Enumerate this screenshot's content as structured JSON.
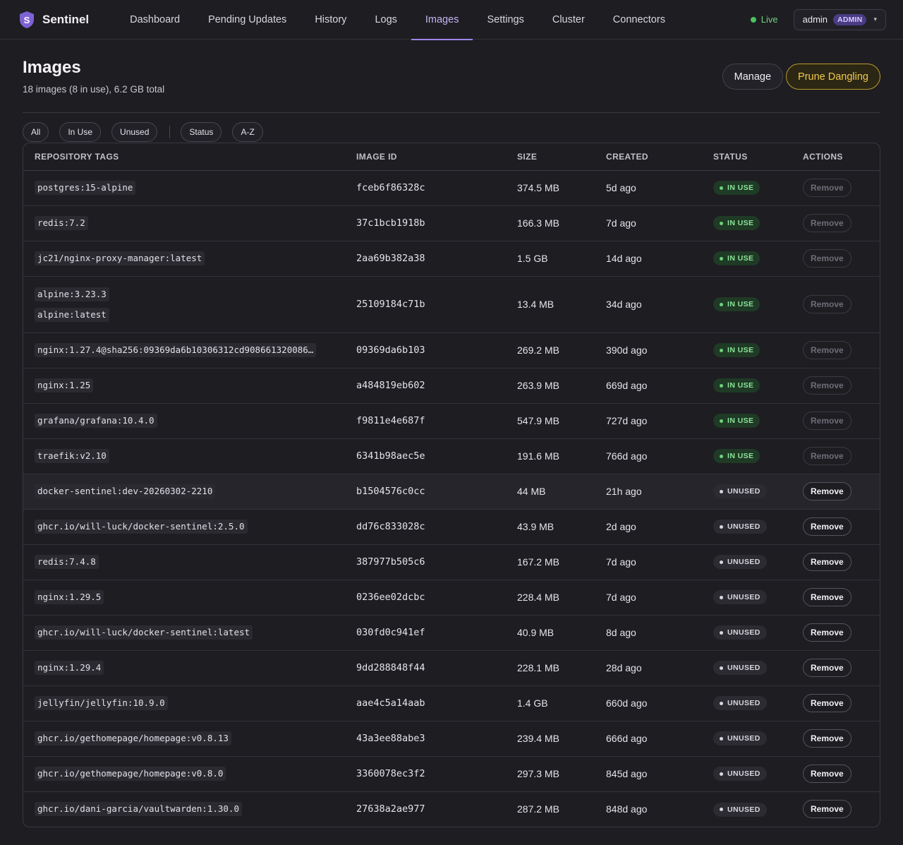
{
  "app": {
    "name": "Sentinel"
  },
  "nav": {
    "items": [
      {
        "label": "Dashboard",
        "active": false
      },
      {
        "label": "Pending Updates",
        "active": false
      },
      {
        "label": "History",
        "active": false
      },
      {
        "label": "Logs",
        "active": false
      },
      {
        "label": "Images",
        "active": true
      },
      {
        "label": "Settings",
        "active": false
      },
      {
        "label": "Cluster",
        "active": false
      },
      {
        "label": "Connectors",
        "active": false
      }
    ],
    "live_label": "Live",
    "user_name": "admin",
    "user_role": "ADMIN"
  },
  "page": {
    "title": "Images",
    "subtitle": "18 images (8 in use), 6.2 GB total",
    "manage_label": "Manage",
    "prune_label": "Prune Dangling"
  },
  "filters": {
    "group1": [
      "All",
      "In Use",
      "Unused"
    ],
    "group2": [
      "Status",
      "A-Z"
    ]
  },
  "table": {
    "headers": [
      "REPOSITORY TAGS",
      "IMAGE ID",
      "SIZE",
      "CREATED",
      "STATUS",
      "ACTIONS"
    ],
    "remove_label": "Remove",
    "rows": [
      {
        "tags": [
          "postgres:15-alpine"
        ],
        "id": "fceb6f86328c",
        "size": "374.5 MB",
        "created": "5d ago",
        "status": "IN USE"
      },
      {
        "tags": [
          "redis:7.2"
        ],
        "id": "37c1bcb1918b",
        "size": "166.3 MB",
        "created": "7d ago",
        "status": "IN USE"
      },
      {
        "tags": [
          "jc21/nginx-proxy-manager:latest"
        ],
        "id": "2aa69b382a38",
        "size": "1.5 GB",
        "created": "14d ago",
        "status": "IN USE"
      },
      {
        "tags": [
          "alpine:3.23.3",
          "alpine:latest"
        ],
        "id": "25109184c71b",
        "size": "13.4 MB",
        "created": "34d ago",
        "status": "IN USE"
      },
      {
        "tags": [
          "nginx:1.27.4@sha256:09369da6b10306312cd908661320086…"
        ],
        "id": "09369da6b103",
        "size": "269.2 MB",
        "created": "390d ago",
        "status": "IN USE"
      },
      {
        "tags": [
          "nginx:1.25"
        ],
        "id": "a484819eb602",
        "size": "263.9 MB",
        "created": "669d ago",
        "status": "IN USE"
      },
      {
        "tags": [
          "grafana/grafana:10.4.0"
        ],
        "id": "f9811e4e687f",
        "size": "547.9 MB",
        "created": "727d ago",
        "status": "IN USE"
      },
      {
        "tags": [
          "traefik:v2.10"
        ],
        "id": "6341b98aec5e",
        "size": "191.6 MB",
        "created": "766d ago",
        "status": "IN USE"
      },
      {
        "tags": [
          "docker-sentinel:dev-20260302-2210"
        ],
        "id": "b1504576c0cc",
        "size": "44 MB",
        "created": "21h ago",
        "status": "UNUSED"
      },
      {
        "tags": [
          "ghcr.io/will-luck/docker-sentinel:2.5.0"
        ],
        "id": "dd76c833028c",
        "size": "43.9 MB",
        "created": "2d ago",
        "status": "UNUSED"
      },
      {
        "tags": [
          "redis:7.4.8"
        ],
        "id": "387977b505c6",
        "size": "167.2 MB",
        "created": "7d ago",
        "status": "UNUSED"
      },
      {
        "tags": [
          "nginx:1.29.5"
        ],
        "id": "0236ee02dcbc",
        "size": "228.4 MB",
        "created": "7d ago",
        "status": "UNUSED"
      },
      {
        "tags": [
          "ghcr.io/will-luck/docker-sentinel:latest"
        ],
        "id": "030fd0c941ef",
        "size": "40.9 MB",
        "created": "8d ago",
        "status": "UNUSED"
      },
      {
        "tags": [
          "nginx:1.29.4"
        ],
        "id": "9dd288848f44",
        "size": "228.1 MB",
        "created": "28d ago",
        "status": "UNUSED"
      },
      {
        "tags": [
          "jellyfin/jellyfin:10.9.0"
        ],
        "id": "aae4c5a14aab",
        "size": "1.4 GB",
        "created": "660d ago",
        "status": "UNUSED"
      },
      {
        "tags": [
          "ghcr.io/gethomepage/homepage:v0.8.13"
        ],
        "id": "43a3ee88abe3",
        "size": "239.4 MB",
        "created": "666d ago",
        "status": "UNUSED"
      },
      {
        "tags": [
          "ghcr.io/gethomepage/homepage:v0.8.0"
        ],
        "id": "3360078ec3f2",
        "size": "297.3 MB",
        "created": "845d ago",
        "status": "UNUSED"
      },
      {
        "tags": [
          "ghcr.io/dani-garcia/vaultwarden:1.30.0"
        ],
        "id": "27638a2ae977",
        "size": "287.2 MB",
        "created": "848d ago",
        "status": "UNUSED"
      }
    ]
  },
  "colors": {
    "accent": "#9d86e6",
    "in_use": "#6fd17d",
    "prune": "#f1c94b",
    "background": "#1e1d22"
  }
}
